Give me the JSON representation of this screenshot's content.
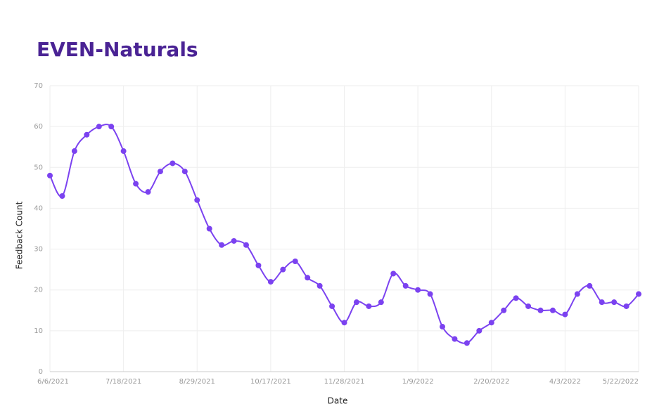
{
  "chart_data": {
    "type": "line",
    "title": "EVEN-Naturals",
    "x_label": "Date",
    "y_label": "Feedback Count",
    "categories": [
      "6/6/2021",
      null,
      null,
      null,
      null,
      null,
      "7/18/2021",
      null,
      null,
      null,
      null,
      null,
      "8/29/2021",
      null,
      null,
      null,
      null,
      null,
      "10/17/2021",
      null,
      null,
      null,
      null,
      null,
      "11/28/2021",
      null,
      null,
      null,
      null,
      null,
      "1/9/2022",
      null,
      null,
      null,
      null,
      null,
      "2/20/2022",
      null,
      null,
      null,
      null,
      null,
      "4/3/2022",
      null,
      null,
      null,
      null,
      null,
      "5/22/2022"
    ],
    "series": [
      {
        "name": "Feedback Count",
        "color": "#7b42f0",
        "values": [
          48,
          43,
          54,
          58,
          60,
          60,
          54,
          46,
          44,
          49,
          51,
          49,
          42,
          35,
          31,
          32,
          31,
          26,
          22,
          25,
          27,
          23,
          21,
          16,
          12,
          17,
          16,
          17,
          24,
          21,
          20,
          19,
          11,
          8,
          7,
          10,
          12,
          15,
          18,
          16,
          15,
          15,
          14,
          19,
          21,
          17,
          17,
          16,
          19
        ]
      }
    ],
    "ylim": [
      0,
      70
    ],
    "yticks": [
      0,
      10,
      20,
      30,
      40,
      50,
      60,
      70
    ],
    "grid": true
  }
}
